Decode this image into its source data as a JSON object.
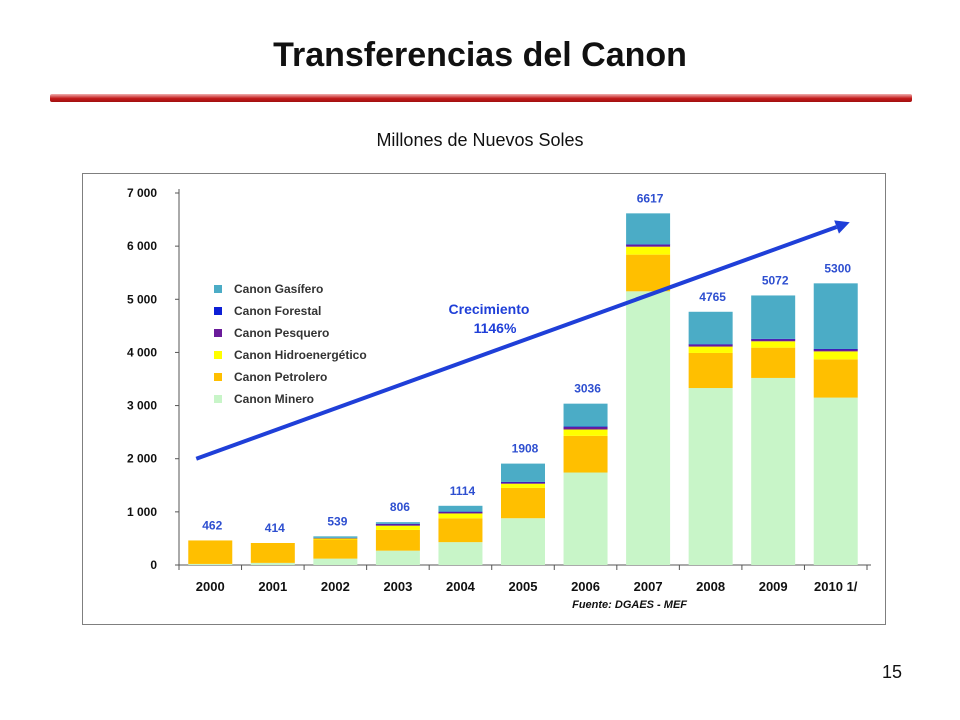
{
  "slide": {
    "title": "Transferencias del Canon",
    "subtitle": "Millones de Nuevos Soles",
    "page_number": "15"
  },
  "colors": {
    "title_rule": "#c0392b",
    "arrow": "#1f3fd8",
    "total_label": "#2e4fd0",
    "axis_text": "#111111"
  },
  "chart_data": {
    "type": "bar",
    "stacked": true,
    "categories": [
      "2000",
      "2001",
      "2002",
      "2003",
      "2004",
      "2005",
      "2006",
      "2007",
      "2008",
      "2009",
      "2010 1/"
    ],
    "series": [
      {
        "name": "Canon Minero",
        "color": "#c8f5c8",
        "values": [
          20,
          40,
          120,
          270,
          430,
          880,
          1740,
          5150,
          3330,
          3520,
          3150
        ]
      },
      {
        "name": "Canon Petrolero",
        "color": "#ffbf00",
        "values": [
          442,
          374,
          360,
          390,
          450,
          570,
          690,
          690,
          660,
          570,
          720
        ]
      },
      {
        "name": "Canon Hidroenergético",
        "color": "#ffff00",
        "values": [
          0,
          0,
          20,
          80,
          90,
          80,
          120,
          150,
          120,
          120,
          150
        ]
      },
      {
        "name": "Canon Pesquero",
        "color": "#6a1b9a",
        "values": [
          0,
          0,
          10,
          30,
          30,
          30,
          50,
          40,
          40,
          40,
          40
        ]
      },
      {
        "name": "Canon Forestal",
        "color": "#0d1fd6",
        "values": [
          0,
          0,
          0,
          5,
          4,
          3,
          5,
          5,
          5,
          5,
          5
        ]
      },
      {
        "name": "Canon Gasífero",
        "color": "#4bacc6",
        "values": [
          0,
          0,
          29,
          31,
          110,
          345,
          431,
          582,
          610,
          817,
          1235
        ]
      }
    ],
    "totals": [
      462,
      414,
      539,
      806,
      1114,
      1908,
      3036,
      6617,
      4765,
      5072,
      5300
    ],
    "total_labels": [
      "462",
      "414",
      "539",
      "806",
      "1114",
      "1908",
      "3036",
      "6617",
      "4765",
      "5072",
      "5300"
    ],
    "y_ticks": [
      0,
      1000,
      2000,
      3000,
      4000,
      5000,
      6000,
      7000
    ],
    "y_tick_labels": [
      "0",
      "1 000",
      "2 000",
      "3 000",
      "4 000",
      "5 000",
      "6 000",
      "7 000"
    ],
    "ylim": [
      0,
      7000
    ],
    "legend": {
      "placement": "top-left",
      "order": [
        "Canon Gasífero",
        "Canon Forestal",
        "Canon Pesquero",
        "Canon Hidroenergético",
        "Canon Petrolero",
        "Canon Minero"
      ]
    },
    "annotation": {
      "text_line1": "Crecimiento",
      "text_line2": "1146%",
      "arrow_from": {
        "x": "2000",
        "y": 2000
      },
      "arrow_to": {
        "x": "2010 1/",
        "y": 6450
      }
    },
    "source": "Fuente: DGAES - MEF",
    "grid": false
  }
}
